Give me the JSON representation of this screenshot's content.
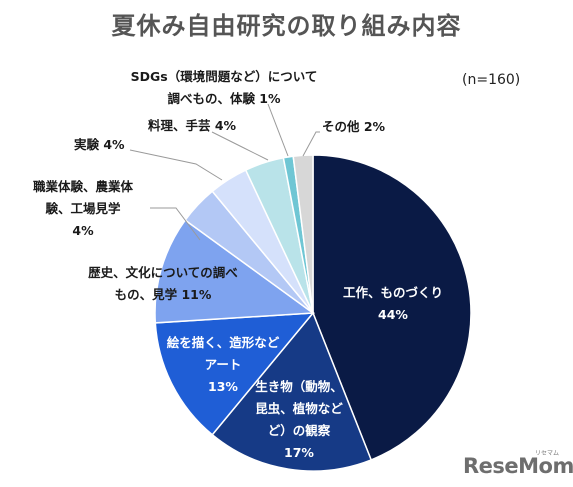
{
  "title": "夏休み自由研究の取り組み内容",
  "n_note": "(n=160)",
  "logo": {
    "text": "ReseMom",
    "sub": "リセマム"
  },
  "chart_data": {
    "type": "pie",
    "title": "夏休み自由研究の取り組み内容",
    "unit": "%",
    "slices": [
      {
        "label": "工作、ものづくり",
        "value": 44,
        "value_label": "44%",
        "color": "#0a1a45"
      },
      {
        "label": "生き物（動物、昆虫、植物など）の観察",
        "value": 17,
        "value_label": "17%",
        "color": "#163a86"
      },
      {
        "label": "絵を描く、造形などアート",
        "value": 13,
        "value_label": "13%",
        "color": "#1f5ed6"
      },
      {
        "label": "歴史、文化についての調べもの、見学",
        "value": 11,
        "value_label": "11%",
        "color": "#7ea3ef"
      },
      {
        "label": "職業体験、農業体験、工場見学",
        "value": 4,
        "value_label": "4%",
        "color": "#b3c8f5"
      },
      {
        "label": "実験",
        "value": 4,
        "value_label": "4%",
        "color": "#d5e1fb"
      },
      {
        "label": "料理、手芸",
        "value": 4,
        "value_label": "4%",
        "color": "#b9e3e9"
      },
      {
        "label": "SDGs（環境問題など）について調べもの、体験",
        "value": 1,
        "value_label": "1%",
        "color": "#6fc6d4"
      },
      {
        "label": "その他",
        "value": 2,
        "value_label": "2%",
        "color": "#d7d7d7"
      }
    ]
  },
  "labels": {
    "kousaku": {
      "line1": "工作、ものづくり",
      "line2": "44%"
    },
    "ikimono": {
      "line1": "生き物（動物、",
      "line2": "昆虫、植物など",
      "line3": "ど）の観察",
      "line4": "17%"
    },
    "art": {
      "line1": "絵を描く、造形など",
      "line2": "アート",
      "line3": "13%"
    },
    "rekishi": {
      "line1": "歴史、文化についての調べ",
      "line2": "もの、見学 11%"
    },
    "shokugyo": {
      "line1": "職業体験、農業体",
      "line2": "験、工場見学",
      "line3": "4%"
    },
    "jikken": {
      "line1": "実験 4%"
    },
    "ryouri": {
      "line1": "料理、手芸 4%"
    },
    "sdgs": {
      "line1": "SDGs（環境問題など）について",
      "line2": "調べもの、体験 1%"
    },
    "sonota": {
      "line1": "その他 2%"
    }
  }
}
